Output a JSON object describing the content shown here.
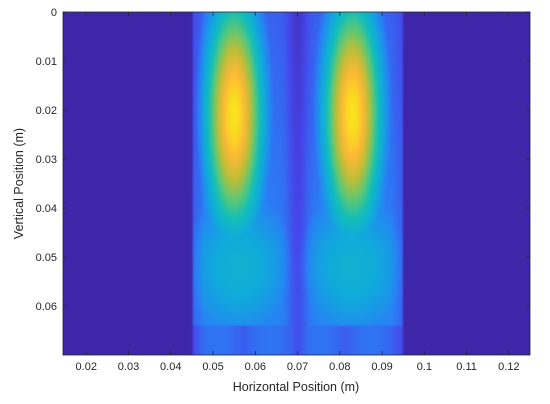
{
  "chart_data": {
    "type": "heatmap",
    "title": "",
    "xlabel": "Horizontal Position (m)",
    "ylabel": "Vertical Position (m)",
    "xlim": [
      0.0145,
      0.125
    ],
    "ylim": [
      0,
      0.07
    ],
    "y_reversed": true,
    "x_ticks": [
      "0.02",
      "0.03",
      "0.04",
      "0.05",
      "0.06",
      "0.07",
      "0.08",
      "0.09",
      "0.1",
      "0.11",
      "0.12"
    ],
    "y_ticks": [
      "0",
      "0.01",
      "0.02",
      "0.03",
      "0.04",
      "0.05",
      "0.06"
    ],
    "colormap": "parula",
    "background_value": 0,
    "active_region": {
      "x": [
        0.045,
        0.095
      ],
      "y": [
        0,
        0.07
      ]
    },
    "hot_spots": [
      {
        "x": 0.055,
        "y": 0.021,
        "level": 0.97
      },
      {
        "x": 0.083,
        "y": 0.021,
        "level": 0.97
      }
    ],
    "center_column_x": 0.07,
    "grid": false
  },
  "colors": {
    "low": "#3e26a8",
    "mid": "#12b4c8",
    "high": "#fbdd25",
    "peak": "#f9fb0e",
    "axis": "#262626"
  }
}
